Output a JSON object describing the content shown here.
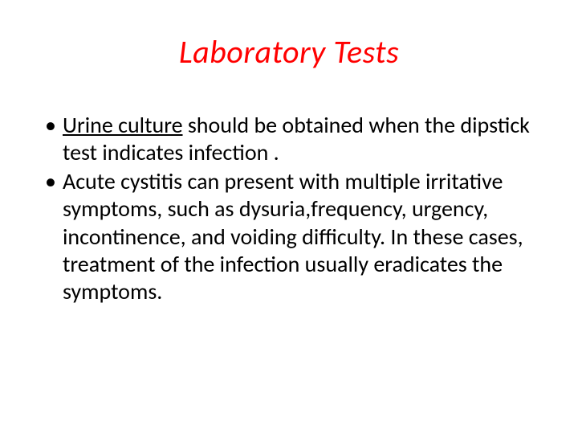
{
  "title": {
    "text": "Laboratory Tests",
    "color": "#ff0000",
    "fontsize": 40
  },
  "body": {
    "color": "#000000",
    "fontsize": 28,
    "bullet_color": "#000000",
    "items": [
      {
        "underlined_prefix": "Urine culture",
        "rest": " should be obtained when the dipstick test indicates infection ."
      },
      {
        "underlined_prefix": "",
        "rest": " Acute cystitis can present with multiple irritative symptoms, such as dysuria,frequency, urgency, incontinence, and voiding difficulty. In these cases, treatment of the infection usually eradicates the symptoms."
      }
    ]
  }
}
